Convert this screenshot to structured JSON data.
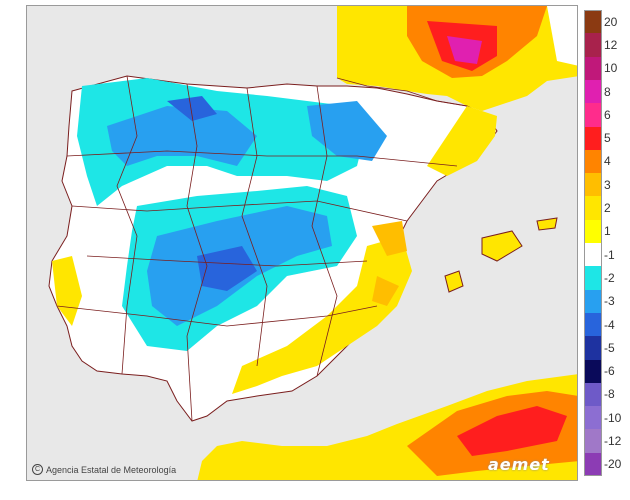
{
  "legend": {
    "items": [
      {
        "label": "20",
        "color": "#8b3a12"
      },
      {
        "label": "12",
        "color": "#a8224c"
      },
      {
        "label": "10",
        "color": "#c0187a"
      },
      {
        "label": "8",
        "color": "#e020b0"
      },
      {
        "label": "6",
        "color": "#ff2c8c"
      },
      {
        "label": "5",
        "color": "#ff1e1e"
      },
      {
        "label": "4",
        "color": "#ff8400"
      },
      {
        "label": "3",
        "color": "#ffbe00"
      },
      {
        "label": "2",
        "color": "#ffe600"
      },
      {
        "label": "1",
        "color": "#ffff00"
      },
      {
        "label": "-1",
        "color": "#ffffff"
      },
      {
        "label": "-2",
        "color": "#1ee6e6"
      },
      {
        "label": "-3",
        "color": "#28a0f0"
      },
      {
        "label": "-4",
        "color": "#2864dc"
      },
      {
        "label": "-5",
        "color": "#1e32a0"
      },
      {
        "label": "-6",
        "color": "#0a0a5a"
      },
      {
        "label": "-8",
        "color": "#6e5ac8"
      },
      {
        "label": "-10",
        "color": "#8c6ed2"
      },
      {
        "label": "-12",
        "color": "#a078c8"
      },
      {
        "label": "-20",
        "color": "#8c3cb4"
      }
    ]
  },
  "colors": {
    "sea": "#e8e8e8",
    "land_outside": "#e8e8e8",
    "land_neutral": "#ffffff",
    "borders": "#7a1e1e"
  },
  "credit": {
    "text": "Agencia Estatal de Meteorología",
    "icon": "copyright-icon"
  },
  "brand": {
    "text": "aemet"
  }
}
